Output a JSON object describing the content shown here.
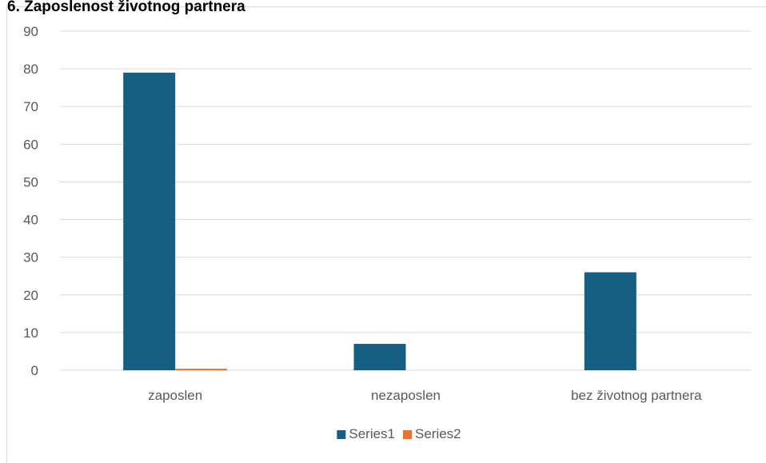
{
  "chart_data": {
    "type": "bar",
    "title": "6. Zaposlenost životnog partnera",
    "categories": [
      "zaposlen",
      "nezaposlen",
      "bez životnog partnera"
    ],
    "series": [
      {
        "name": "Series1",
        "color": "#156082",
        "values": [
          79,
          7,
          26
        ]
      },
      {
        "name": "Series2",
        "color": "#e97132",
        "values": [
          0.4,
          0,
          0
        ]
      }
    ],
    "xlabel": "",
    "ylabel": "",
    "ylim": [
      0,
      90
    ],
    "yticks": [
      0,
      10,
      20,
      30,
      40,
      50,
      60,
      70,
      80,
      90
    ],
    "grid": true,
    "legend": "bottom"
  }
}
